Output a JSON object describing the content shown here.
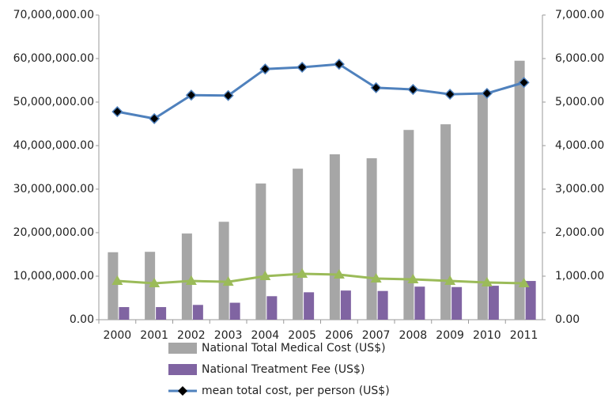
{
  "chart_data": {
    "type": "bar-line",
    "categories": [
      "2000",
      "2001",
      "2002",
      "2003",
      "2004",
      "2005",
      "2006",
      "2007",
      "2008",
      "2009",
      "2010",
      "2011"
    ],
    "series": [
      {
        "name": "National  Total Medical Cost (US$)",
        "type": "bar",
        "color": "#a6a6a6",
        "values": [
          15500000,
          15600000,
          19800000,
          22500000,
          31300000,
          34700000,
          38000000,
          37100000,
          43600000,
          44900000,
          52000000,
          59500000
        ]
      },
      {
        "name": "National Treatment Fee (US$)",
        "type": "bar",
        "color": "#8064a2",
        "values": [
          2900000,
          2900000,
          3400000,
          3900000,
          5400000,
          6300000,
          6700000,
          6600000,
          7600000,
          7500000,
          7800000,
          8900000
        ]
      },
      {
        "name": "mean total cost, per person (US$)",
        "type": "line",
        "axis": "y2",
        "color": "#4f81bd",
        "marker": "diamond",
        "values": [
          4780,
          4620,
          5160,
          5150,
          5760,
          5800,
          5870,
          5330,
          5290,
          5180,
          5200,
          5450
        ]
      },
      {
        "type": "line",
        "axis": "y2",
        "color": "#9bbb59",
        "marker": "triangle",
        "values": [
          890,
          836,
          890,
          870,
          1000,
          1055,
          1036,
          945,
          927,
          890,
          855,
          836
        ]
      }
    ],
    "ylim": [
      0,
      70000000
    ],
    "yticks": [
      {
        "value": 0,
        "label": "0.00"
      },
      {
        "value": 10000000,
        "label": "10,000,000.00"
      },
      {
        "value": 20000000,
        "label": "20,000,000.00"
      },
      {
        "value": 30000000,
        "label": "30,000,000.00"
      },
      {
        "value": 40000000,
        "label": "40,000,000.00"
      },
      {
        "value": 50000000,
        "label": "50,000,000.00"
      },
      {
        "value": 60000000,
        "label": "60,000,000.00"
      },
      {
        "value": 70000000,
        "label": "70,000,000.00"
      }
    ],
    "y2lim": [
      0,
      7000
    ],
    "y2ticks": [
      {
        "value": 0,
        "label": "0.00"
      },
      {
        "value": 1000,
        "label": "1,000.00"
      },
      {
        "value": 2000,
        "label": "2,000.00"
      },
      {
        "value": 3000,
        "label": "3,000.00"
      },
      {
        "value": 4000,
        "label": "4,000.00"
      },
      {
        "value": 5000,
        "label": "5,000.00"
      },
      {
        "value": 6000,
        "label": "6,000.00"
      },
      {
        "value": 7000,
        "label": "7,000.00"
      }
    ],
    "grid": false,
    "legend": "bottom"
  }
}
